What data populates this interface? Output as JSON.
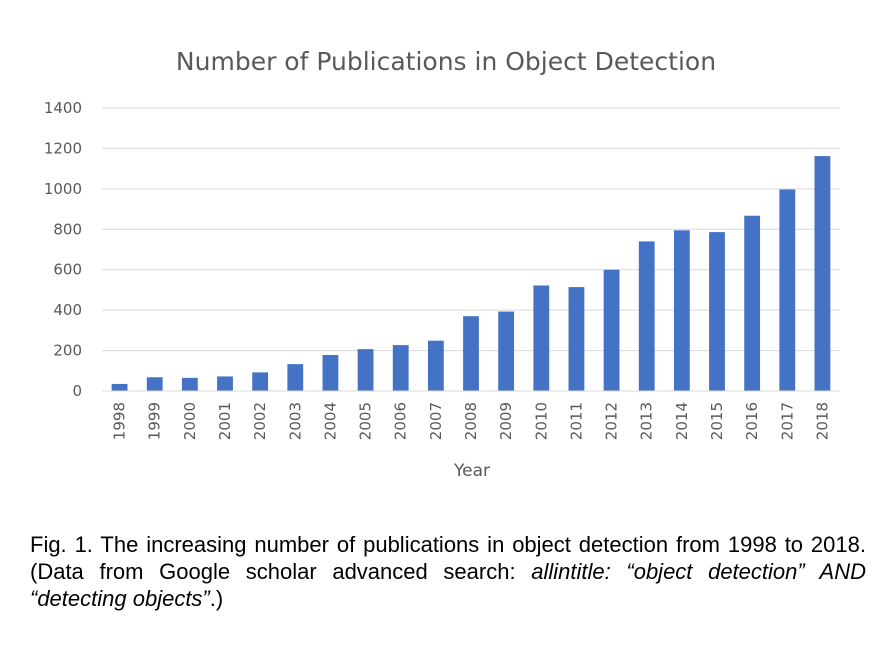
{
  "chart_data": {
    "type": "bar",
    "title": "Number of Publications in Object Detection",
    "xlabel": "Year",
    "ylabel": "",
    "ylim": [
      0,
      1400
    ],
    "yticks": [
      "0",
      "200",
      "400",
      "600",
      "800",
      "1000",
      "1200",
      "1400"
    ],
    "grid": true,
    "legend": "none",
    "bar_color": "#4472c4",
    "categories": [
      "1998",
      "1999",
      "2000",
      "2001",
      "2002",
      "2003",
      "2004",
      "2005",
      "2006",
      "2007",
      "2008",
      "2009",
      "2010",
      "2011",
      "2012",
      "2013",
      "2014",
      "2015",
      "2016",
      "2017",
      "2018"
    ],
    "values": [
      35,
      68,
      65,
      72,
      92,
      133,
      178,
      207,
      227,
      249,
      370,
      393,
      522,
      514,
      600,
      740,
      795,
      786,
      867,
      997,
      1162
    ]
  },
  "caption": {
    "prefix": "Fig. 1. The increasing number of publications in object detection from 1998 to 2018. (Data from Google scholar advanced search: ",
    "italic": "allintitle: “object detection” AND “detecting objects”",
    "suffix": ".)"
  }
}
